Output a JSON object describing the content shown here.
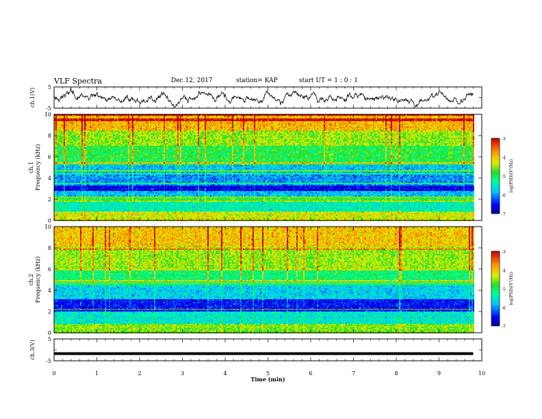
{
  "header": {
    "title": "VLF Spectra",
    "date": "Dec.12, 2017",
    "station": "station= KAP",
    "start_ut": "start  UT  =   1 : 0  : 1"
  },
  "chart_data": [
    {
      "type": "line",
      "panel": "ch1-waveform",
      "ylabel": "ch.1(V)",
      "ylim": [
        -5,
        5
      ],
      "yticks": [
        "5",
        "-5"
      ],
      "xlim": [
        0,
        10
      ],
      "approx_signal": "noisy trace fluctuating roughly between -3 and +3 V around 0",
      "color": "#000000"
    },
    {
      "type": "heatmap",
      "panel": "ch1-spectrogram",
      "ylabel": "ch.1 Frequency (kHz)",
      "ylim": [
        0,
        10
      ],
      "yticks": [
        "0",
        "2",
        "4",
        "6",
        "8",
        "10"
      ],
      "xlim": [
        0,
        9.8
      ],
      "colorbar": {
        "label": "log(PSD)(V²/Hz)",
        "range": [
          -7,
          -3
        ],
        "ticks": [
          "-3",
          "-4",
          "-5",
          "-6",
          "-7"
        ]
      },
      "bands": [
        {
          "f": [
            0.0,
            0.9
          ],
          "level": -4.3
        },
        {
          "f": [
            0.9,
            1.9
          ],
          "level": -5.4
        },
        {
          "f": [
            1.9,
            2.3
          ],
          "level": -4.8
        },
        {
          "f": [
            2.3,
            2.8
          ],
          "level": -5.8
        },
        {
          "f": [
            2.8,
            3.3
          ],
          "level": -6.6
        },
        {
          "f": [
            3.3,
            4.4
          ],
          "level": -6.0
        },
        {
          "f": [
            4.4,
            5.2
          ],
          "level": -5.8
        },
        {
          "f": [
            5.2,
            7.0
          ],
          "level": -4.9
        },
        {
          "f": [
            7.0,
            8.5
          ],
          "level": -4.5
        },
        {
          "f": [
            8.5,
            10.0
          ],
          "level": -3.9
        }
      ]
    },
    {
      "type": "heatmap",
      "panel": "ch2-spectrogram",
      "ylabel": "ch.2 Frequency (kHz)",
      "ylim": [
        0,
        10
      ],
      "yticks": [
        "0",
        "2",
        "4",
        "6",
        "8",
        "10"
      ],
      "xlim": [
        0,
        9.8
      ],
      "colorbar": {
        "label": "log(PSD)(V²/Hz)",
        "range": [
          -7,
          -3
        ],
        "ticks": [
          "-3",
          "-4",
          "-5",
          "-6",
          "-7"
        ]
      },
      "bands": [
        {
          "f": [
            0.0,
            0.8
          ],
          "level": -4.6
        },
        {
          "f": [
            0.8,
            2.0
          ],
          "level": -5.5
        },
        {
          "f": [
            2.0,
            3.2
          ],
          "level": -6.5
        },
        {
          "f": [
            3.2,
            4.5
          ],
          "level": -5.7
        },
        {
          "f": [
            4.5,
            6.0
          ],
          "level": -5.1
        },
        {
          "f": [
            6.0,
            8.0
          ],
          "level": -4.5
        },
        {
          "f": [
            8.0,
            10.0
          ],
          "level": -4.0
        }
      ]
    },
    {
      "type": "line",
      "panel": "ch3-waveform",
      "ylabel": "ch.3(V)",
      "ylim": [
        -5,
        5
      ],
      "yticks": [
        "5",
        "-5"
      ],
      "xlim": [
        0,
        9.8
      ],
      "constant_value": -1.7,
      "color": "#000000"
    }
  ],
  "x_axis": {
    "label": "Time  (min)",
    "range": [
      0,
      10
    ],
    "ticks": [
      "0",
      "1",
      "2",
      "3",
      "4",
      "5",
      "6",
      "7",
      "8",
      "9",
      "10"
    ]
  }
}
